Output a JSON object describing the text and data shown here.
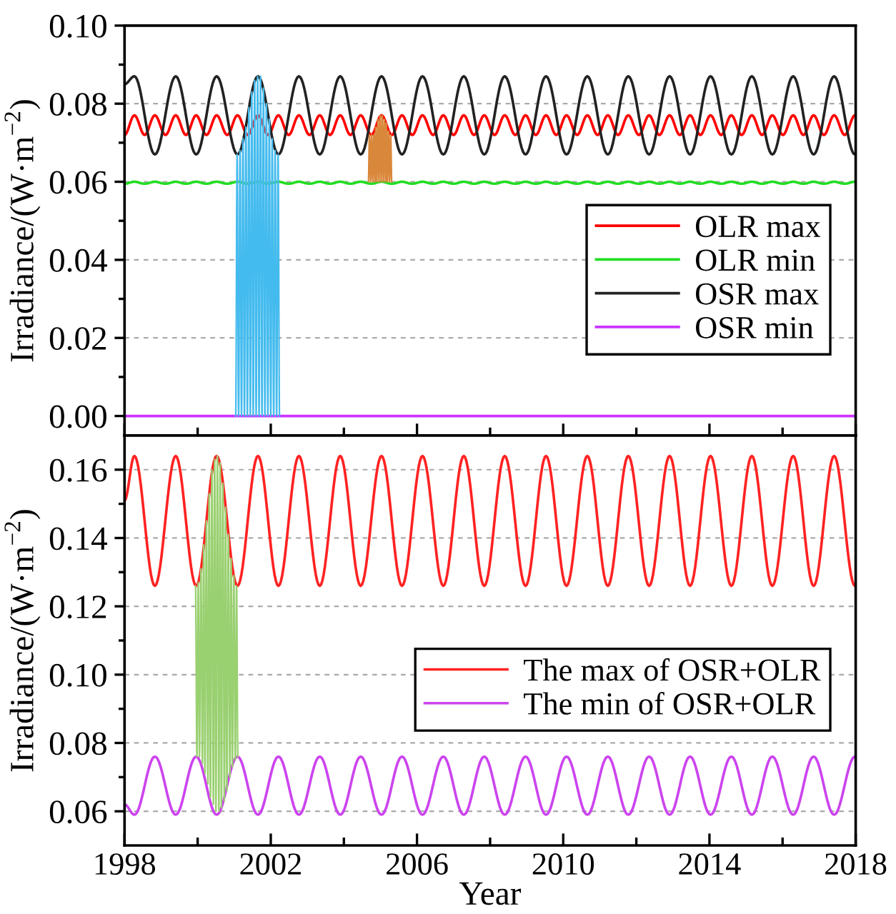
{
  "chart_data": [
    {
      "type": "line",
      "ylabel": "Irradiance/(W·m$^{−2}$)",
      "xlim": [
        1998,
        2018
      ],
      "xticks": [
        1998,
        {
          "value": 2000,
          "label": null
        },
        2002,
        {
          "value": 2004,
          "label": null
        },
        2006,
        {
          "value": 2008,
          "label": null
        },
        2010,
        {
          "value": 2012,
          "label": null
        },
        2014,
        {
          "value": 2016,
          "label": null
        },
        2018
      ],
      "ylim": [
        -0.005,
        0.1
      ],
      "yticks": [
        {
          "value": 0,
          "label": "0.00"
        },
        {
          "value": 0.01,
          "label": null
        },
        {
          "value": 0.02,
          "label": "0.02"
        },
        {
          "value": 0.03,
          "label": null
        },
        {
          "value": 0.04,
          "label": "0.04"
        },
        {
          "value": 0.05,
          "label": null
        },
        {
          "value": 0.06,
          "label": "0.06"
        },
        {
          "value": 0.07,
          "label": null
        },
        {
          "value": 0.08,
          "label": "0.08"
        },
        {
          "value": 0.09,
          "label": null
        },
        {
          "value": 0.1,
          "label": "0.10"
        }
      ],
      "tick_labels": "y",
      "grid": "y",
      "legend": "right",
      "series": [
        {
          "name": "OLR max",
          "color": "#ff0000",
          "x": [
            1998,
            1998.27,
            1998.55,
            1998.83,
            1999.12,
            1999.4,
            1999.68,
            1999.96,
            2000.24,
            2000.52,
            2000.81,
            2001.09,
            2001.37,
            2001.65,
            2001.93,
            2002.21,
            2002.49,
            2002.77,
            2003.06,
            2003.34,
            2003.62,
            2003.9,
            2004.18,
            2004.46,
            2004.75,
            2005.03,
            2005.31,
            2005.59,
            2005.87,
            2006.15,
            2006.44,
            2006.72,
            2007.0,
            2007.28,
            2007.56,
            2007.84,
            2008.12,
            2008.4,
            2008.69,
            2008.97,
            2009.25,
            2009.53,
            2009.81,
            2010.09,
            2010.38,
            2010.66,
            2010.94,
            2011.22,
            2011.5,
            2011.78,
            2012.07,
            2012.35,
            2012.63,
            2012.91,
            2013.19,
            2013.47,
            2013.75,
            2014.03,
            2014.32,
            2014.6,
            2014.88,
            2015.16,
            2015.44,
            2015.72,
            2016.01,
            2016.29,
            2016.57,
            2016.85,
            2017.13,
            2017.41,
            2017.7,
            2017.98,
            2018
          ],
          "values": [
            0.072,
            0.077,
            0.072,
            0.077,
            0.072,
            0.077,
            0.072,
            0.077,
            0.072,
            0.077,
            0.072,
            0.077,
            0.072,
            0.077,
            0.072,
            0.077,
            0.072,
            0.077,
            0.072,
            0.077,
            0.072,
            0.077,
            0.072,
            0.077,
            0.072,
            0.077,
            0.072,
            0.077,
            0.072,
            0.077,
            0.072,
            0.077,
            0.072,
            0.077,
            0.072,
            0.077,
            0.072,
            0.077,
            0.072,
            0.077,
            0.072,
            0.077,
            0.072,
            0.077,
            0.072,
            0.077,
            0.072,
            0.077,
            0.072,
            0.077,
            0.072,
            0.077,
            0.072,
            0.077,
            0.072,
            0.077,
            0.072,
            0.077,
            0.072,
            0.077,
            0.072,
            0.077,
            0.072,
            0.077,
            0.072,
            0.077,
            0.072,
            0.077,
            0.072,
            0.077,
            0.072,
            0.077,
            0.077
          ]
        },
        {
          "name": "OLR min",
          "color": "#22dd22",
          "x": [
            1998,
            1998.27,
            1998.55,
            1998.83,
            1999.12,
            1999.4,
            1999.68,
            1999.96,
            2000.24,
            2000.52,
            2000.81,
            2001.09,
            2001.37,
            2001.65,
            2001.93,
            2002.21,
            2002.49,
            2002.77,
            2003.06,
            2003.34,
            2003.62,
            2003.9,
            2004.18,
            2004.46,
            2004.75,
            2005.03,
            2005.31,
            2005.59,
            2005.87,
            2006.15,
            2006.44,
            2006.72,
            2007.0,
            2007.28,
            2007.56,
            2007.84,
            2008.12,
            2008.4,
            2008.69,
            2008.97,
            2009.25,
            2009.53,
            2009.81,
            2010.09,
            2010.38,
            2010.66,
            2010.94,
            2011.22,
            2011.5,
            2011.78,
            2012.07,
            2012.35,
            2012.63,
            2012.91,
            2013.19,
            2013.47,
            2013.75,
            2014.03,
            2014.32,
            2014.6,
            2014.88,
            2015.16,
            2015.44,
            2015.72,
            2016.01,
            2016.29,
            2016.57,
            2016.85,
            2017.13,
            2017.41,
            2017.7,
            2017.98,
            2018
          ],
          "values": [
            0.0595,
            0.06,
            0.0595,
            0.06,
            0.0595,
            0.06,
            0.0595,
            0.06,
            0.0595,
            0.06,
            0.0595,
            0.06,
            0.0595,
            0.06,
            0.0595,
            0.06,
            0.0595,
            0.06,
            0.0595,
            0.06,
            0.0595,
            0.06,
            0.0595,
            0.06,
            0.0595,
            0.06,
            0.0595,
            0.06,
            0.0595,
            0.06,
            0.0595,
            0.06,
            0.0595,
            0.06,
            0.0595,
            0.06,
            0.0595,
            0.06,
            0.0595,
            0.06,
            0.0595,
            0.06,
            0.0595,
            0.06,
            0.0595,
            0.06,
            0.0595,
            0.06,
            0.0595,
            0.06,
            0.0595,
            0.06,
            0.0595,
            0.06,
            0.0595,
            0.06,
            0.0595,
            0.06,
            0.0595,
            0.06,
            0.0595,
            0.06,
            0.0595,
            0.06,
            0.0595,
            0.06,
            0.0595,
            0.06,
            0.0595,
            0.06,
            0.0595,
            0.06,
            0.06
          ]
        },
        {
          "name": "OSR max",
          "color": "#222222",
          "x": [
            1998,
            1998.27,
            1998.83,
            1999.4,
            1999.96,
            2000.52,
            2001.09,
            2001.65,
            2002.21,
            2002.77,
            2003.34,
            2003.9,
            2004.46,
            2005.03,
            2005.59,
            2006.15,
            2006.72,
            2007.28,
            2007.84,
            2008.4,
            2008.97,
            2009.53,
            2010.09,
            2010.66,
            2011.22,
            2011.78,
            2012.35,
            2012.91,
            2013.47,
            2014.03,
            2014.6,
            2015.16,
            2015.72,
            2016.29,
            2016.85,
            2017.41,
            2017.98,
            2018
          ],
          "values": [
            0.085,
            0.087,
            0.067,
            0.087,
            0.067,
            0.087,
            0.067,
            0.087,
            0.067,
            0.087,
            0.067,
            0.087,
            0.067,
            0.087,
            0.067,
            0.087,
            0.067,
            0.087,
            0.067,
            0.087,
            0.067,
            0.087,
            0.067,
            0.087,
            0.067,
            0.087,
            0.067,
            0.087,
            0.067,
            0.087,
            0.067,
            0.087,
            0.067,
            0.087,
            0.067,
            0.087,
            0.067,
            0.067
          ]
        },
        {
          "name": "OSR min",
          "color": "#cc33ff",
          "x": [
            1998,
            2018
          ],
          "values": [
            0,
            0
          ]
        },
        {
          "color": "#44bbee",
          "x": [
            2001.04,
            2001.08,
            2001.12,
            2001.16,
            2001.2,
            2001.24,
            2001.28,
            2001.32,
            2001.36,
            2001.4,
            2001.44,
            2001.48,
            2001.52,
            2001.56,
            2001.6,
            2001.64,
            2001.68,
            2001.72,
            2001.76,
            2001.8,
            2001.84,
            2001.88,
            2001.92,
            2001.96,
            2002.0,
            2002.04,
            2002.08,
            2002.12,
            2002.16,
            2002.2,
            2002.24
          ],
          "values": [
            0,
            0.067,
            0,
            0.068,
            0,
            0.071,
            0,
            0.074,
            0,
            0.079,
            0,
            0.083,
            0,
            0.086,
            0,
            0.087,
            0,
            0.087,
            0,
            0.084,
            0,
            0.08,
            0,
            0.076,
            0,
            0.071,
            0,
            0.068,
            0,
            0.067,
            0
          ]
        },
        {
          "color": "#d9873a",
          "x": [
            2004.67,
            2004.7,
            2004.73,
            2004.76,
            2004.79,
            2004.82,
            2004.85,
            2004.87,
            2004.9,
            2004.93,
            2004.96,
            2004.99,
            2005.02,
            2005.05,
            2005.08,
            2005.11,
            2005.14,
            2005.16,
            2005.19,
            2005.22,
            2005.25,
            2005.28,
            2005.31
          ],
          "values": [
            0.06,
            0.072,
            0.06,
            0.072,
            0.06,
            0.072,
            0.06,
            0.074,
            0.06,
            0.076,
            0.06,
            0.077,
            0.06,
            0.077,
            0.06,
            0.076,
            0.06,
            0.075,
            0.06,
            0.073,
            0.06,
            0.072,
            0.06
          ]
        }
      ]
    },
    {
      "type": "line",
      "xlabel": "Year",
      "ylabel": "Irradiance/(W·m$^{−2}$)",
      "xlim": [
        1998,
        2018
      ],
      "xticks": [
        1998,
        {
          "value": 2000,
          "label": null
        },
        2002,
        {
          "value": 2004,
          "label": null
        },
        2006,
        {
          "value": 2008,
          "label": null
        },
        2010,
        {
          "value": 2012,
          "label": null
        },
        2014,
        {
          "value": 2016,
          "label": null
        },
        2018
      ],
      "ylim": [
        0.05,
        0.17
      ],
      "yticks": [
        {
          "value": 0.06,
          "label": "0.06"
        },
        {
          "value": 0.07,
          "label": null
        },
        {
          "value": 0.08,
          "label": "0.08"
        },
        {
          "value": 0.09,
          "label": null
        },
        {
          "value": 0.1,
          "label": "0.10"
        },
        {
          "value": 0.11,
          "label": null
        },
        {
          "value": 0.12,
          "label": "0.12"
        },
        {
          "value": 0.13,
          "label": null
        },
        {
          "value": 0.14,
          "label": "0.14"
        },
        {
          "value": 0.15,
          "label": null
        },
        {
          "value": 0.16,
          "label": "0.16"
        }
      ],
      "grid": "y",
      "legend": "right",
      "series": [
        {
          "name": "The max of OSR+OLR",
          "color": "#ff2222",
          "x": [
            1998,
            1998.27,
            1998.83,
            1999.4,
            1999.96,
            2000.52,
            2001.09,
            2001.65,
            2002.21,
            2002.77,
            2003.34,
            2003.9,
            2004.46,
            2005.03,
            2005.59,
            2006.15,
            2006.72,
            2007.28,
            2007.84,
            2008.4,
            2008.97,
            2009.53,
            2010.09,
            2010.66,
            2011.22,
            2011.78,
            2012.35,
            2012.91,
            2013.47,
            2014.03,
            2014.6,
            2015.16,
            2015.72,
            2016.29,
            2016.85,
            2017.41,
            2017.98,
            2018
          ],
          "values": [
            0.151,
            0.164,
            0.126,
            0.164,
            0.126,
            0.164,
            0.126,
            0.164,
            0.126,
            0.164,
            0.126,
            0.164,
            0.126,
            0.164,
            0.126,
            0.164,
            0.126,
            0.164,
            0.126,
            0.164,
            0.126,
            0.164,
            0.126,
            0.164,
            0.126,
            0.164,
            0.126,
            0.164,
            0.126,
            0.164,
            0.126,
            0.164,
            0.126,
            0.164,
            0.126,
            0.164,
            0.126,
            0.126
          ]
        },
        {
          "name": "The min of OSR+OLR",
          "color": "#cc44ee",
          "x": [
            1998,
            1998.27,
            1998.83,
            1999.4,
            1999.96,
            2000.52,
            2001.09,
            2001.65,
            2002.21,
            2002.77,
            2003.34,
            2003.9,
            2004.46,
            2005.03,
            2005.59,
            2006.15,
            2006.72,
            2007.28,
            2007.84,
            2008.4,
            2008.97,
            2009.53,
            2010.09,
            2010.66,
            2011.22,
            2011.78,
            2012.35,
            2012.91,
            2013.47,
            2014.03,
            2014.6,
            2015.16,
            2015.72,
            2016.29,
            2016.85,
            2017.41,
            2017.98,
            2018
          ],
          "values": [
            0.062,
            0.059,
            0.076,
            0.059,
            0.076,
            0.059,
            0.076,
            0.059,
            0.076,
            0.059,
            0.076,
            0.059,
            0.076,
            0.059,
            0.076,
            0.059,
            0.076,
            0.059,
            0.076,
            0.059,
            0.076,
            0.059,
            0.076,
            0.059,
            0.076,
            0.059,
            0.076,
            0.059,
            0.076,
            0.059,
            0.076,
            0.059,
            0.076,
            0.059,
            0.076,
            0.059,
            0.076,
            0.076
          ]
        },
        {
          "color": "#99d070",
          "x": [
            1999.94,
            1999.98,
            2000.015,
            2000.05,
            2000.09,
            2000.13,
            2000.165,
            2000.2,
            2000.24,
            2000.28,
            2000.315,
            2000.35,
            2000.39,
            2000.43,
            2000.465,
            2000.5,
            2000.54,
            2000.58,
            2000.615,
            2000.65,
            2000.69,
            2000.73,
            2000.765,
            2000.8,
            2000.84,
            2000.88,
            2000.915,
            2000.95,
            2000.99,
            2001.03,
            2001.065,
            2001.1
          ],
          "values": [
            0.126,
            0.076,
            0.127,
            0.076,
            0.131,
            0.074,
            0.138,
            0.071,
            0.145,
            0.068,
            0.153,
            0.064,
            0.16,
            0.062,
            0.163,
            0.06,
            0.164,
            0.06,
            0.162,
            0.061,
            0.156,
            0.063,
            0.149,
            0.066,
            0.141,
            0.07,
            0.134,
            0.073,
            0.129,
            0.075,
            0.126,
            0.076
          ]
        }
      ]
    }
  ]
}
